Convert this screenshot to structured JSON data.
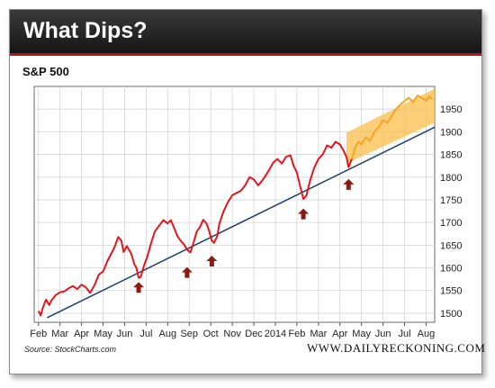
{
  "header": {
    "title": "What Dips?"
  },
  "source": "Source: StockCharts.com",
  "brand": "WWW.DAILYRECKONING.COM",
  "colors": {
    "price_line": "#e8141c",
    "recent_line": "#f5a623",
    "trend_line": "#1c3f66",
    "highlight": "#fbbd4b",
    "arrow": "#8b1a12",
    "header": "#1f1f1f"
  },
  "chart_data": {
    "type": "line",
    "title": "S&P 500",
    "xlabel": "",
    "ylabel": "",
    "ylim": [
      1480,
      2000
    ],
    "y_ticks": [
      1500,
      1550,
      1600,
      1650,
      1700,
      1750,
      1800,
      1850,
      1900,
      1950
    ],
    "x_tick_labels": [
      "Feb",
      "Mar",
      "Apr",
      "May",
      "Jun",
      "Jul",
      "Aug",
      "Sep",
      "Oct",
      "Nov",
      "Dec",
      "2014",
      "Feb",
      "Mar",
      "Apr",
      "May",
      "Jun",
      "Jul",
      "Aug"
    ],
    "x_ticks": [
      0,
      1,
      2,
      3,
      4,
      5,
      6,
      7,
      8,
      9,
      10,
      11,
      12,
      13,
      14,
      15,
      16,
      17,
      18
    ],
    "grid": true,
    "x_range": [
      -0.2,
      18.4
    ],
    "series": [
      {
        "values": [
          [
            0,
            1505
          ],
          [
            0.1,
            1495
          ],
          [
            0.2,
            1512
          ],
          [
            0.35,
            1530
          ],
          [
            0.5,
            1518
          ],
          [
            0.6,
            1528
          ],
          [
            0.8,
            1540
          ],
          [
            1.0,
            1546
          ],
          [
            1.2,
            1548
          ],
          [
            1.4,
            1555
          ],
          [
            1.6,
            1560
          ],
          [
            1.8,
            1553
          ],
          [
            2.0,
            1563
          ],
          [
            2.2,
            1557
          ],
          [
            2.4,
            1545
          ],
          [
            2.6,
            1562
          ],
          [
            2.8,
            1585
          ],
          [
            3.0,
            1592
          ],
          [
            3.2,
            1615
          ],
          [
            3.4,
            1633
          ],
          [
            3.55,
            1648
          ],
          [
            3.7,
            1668
          ],
          [
            3.85,
            1660
          ],
          [
            3.95,
            1635
          ],
          [
            4.1,
            1648
          ],
          [
            4.3,
            1632
          ],
          [
            4.45,
            1608
          ],
          [
            4.55,
            1600
          ],
          [
            4.65,
            1578
          ],
          [
            4.75,
            1580
          ],
          [
            4.9,
            1605
          ],
          [
            5.05,
            1624
          ],
          [
            5.2,
            1650
          ],
          [
            5.4,
            1680
          ],
          [
            5.6,
            1693
          ],
          [
            5.8,
            1705
          ],
          [
            6.0,
            1698
          ],
          [
            6.15,
            1705
          ],
          [
            6.3,
            1688
          ],
          [
            6.45,
            1670
          ],
          [
            6.6,
            1660
          ],
          [
            6.75,
            1652
          ],
          [
            6.9,
            1640
          ],
          [
            7.05,
            1634
          ],
          [
            7.2,
            1655
          ],
          [
            7.35,
            1680
          ],
          [
            7.5,
            1690
          ],
          [
            7.65,
            1706
          ],
          [
            7.8,
            1698
          ],
          [
            7.9,
            1685
          ],
          [
            8.05,
            1660
          ],
          [
            8.15,
            1655
          ],
          [
            8.3,
            1670
          ],
          [
            8.4,
            1698
          ],
          [
            8.6,
            1725
          ],
          [
            8.8,
            1745
          ],
          [
            9.0,
            1760
          ],
          [
            9.2,
            1765
          ],
          [
            9.4,
            1770
          ],
          [
            9.6,
            1782
          ],
          [
            9.8,
            1800
          ],
          [
            10.0,
            1795
          ],
          [
            10.2,
            1782
          ],
          [
            10.35,
            1790
          ],
          [
            10.5,
            1800
          ],
          [
            10.7,
            1815
          ],
          [
            10.9,
            1832
          ],
          [
            11.1,
            1840
          ],
          [
            11.3,
            1830
          ],
          [
            11.5,
            1845
          ],
          [
            11.7,
            1848
          ],
          [
            11.85,
            1825
          ],
          [
            12.0,
            1810
          ],
          [
            12.15,
            1780
          ],
          [
            12.3,
            1752
          ],
          [
            12.45,
            1760
          ],
          [
            12.6,
            1790
          ],
          [
            12.8,
            1820
          ],
          [
            13.0,
            1840
          ],
          [
            13.2,
            1850
          ],
          [
            13.4,
            1870
          ],
          [
            13.6,
            1865
          ],
          [
            13.8,
            1878
          ],
          [
            14.0,
            1872
          ],
          [
            14.15,
            1860
          ],
          [
            14.3,
            1845
          ],
          [
            14.4,
            1822
          ],
          [
            14.55,
            1840
          ]
        ]
      },
      {
        "values": [
          [
            14.55,
            1840
          ],
          [
            14.7,
            1865
          ],
          [
            14.85,
            1878
          ],
          [
            15.0,
            1872
          ],
          [
            15.2,
            1888
          ],
          [
            15.4,
            1880
          ],
          [
            15.6,
            1900
          ],
          [
            15.8,
            1910
          ],
          [
            16.0,
            1925
          ],
          [
            16.2,
            1920
          ],
          [
            16.4,
            1935
          ],
          [
            16.6,
            1950
          ],
          [
            16.8,
            1960
          ],
          [
            17.0,
            1968
          ],
          [
            17.2,
            1975
          ],
          [
            17.4,
            1965
          ],
          [
            17.6,
            1980
          ],
          [
            17.8,
            1975
          ],
          [
            18.0,
            1968
          ],
          [
            18.15,
            1978
          ],
          [
            18.3,
            1972
          ]
        ]
      }
    ],
    "trend_line": [
      [
        0.4,
        1490
      ],
      [
        18.4,
        1910
      ]
    ],
    "annotations": [
      {
        "type": "arrow",
        "x": 4.65,
        "y": 1555
      },
      {
        "type": "arrow",
        "x": 6.9,
        "y": 1588
      },
      {
        "type": "arrow",
        "x": 8.05,
        "y": 1613
      },
      {
        "type": "arrow",
        "x": 12.3,
        "y": 1717
      },
      {
        "type": "arrow",
        "x": 14.4,
        "y": 1782
      },
      {
        "type": "highlight-band",
        "x_start": 14.3,
        "x_end": 18.4,
        "lower_start": 1830,
        "upper_start": 1898,
        "lower_end": 1920,
        "upper_end": 1995
      }
    ]
  }
}
